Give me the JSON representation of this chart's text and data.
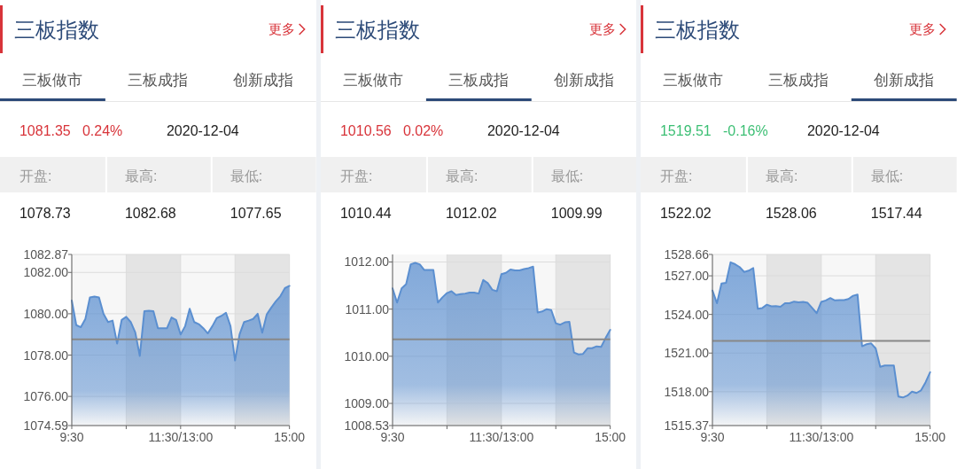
{
  "chart_data": [
    {
      "type": "area",
      "title": "三板指数",
      "annotations": [
        "更多",
        "三板做市",
        "三板成指",
        "创新成指",
        "1081.35",
        "0.24%",
        "2020-12-04",
        "开盘:",
        "最高:",
        "最低:",
        "1078.73",
        "1082.68",
        "1077.65"
      ],
      "categories": [
        "9:30",
        null,
        null,
        null,
        null,
        null,
        null,
        null,
        null,
        null,
        null,
        null,
        null,
        null,
        null,
        null,
        null,
        null,
        null,
        null,
        null,
        null,
        null,
        null,
        "11:30/13:00",
        null,
        null,
        null,
        null,
        null,
        null,
        null,
        null,
        null,
        null,
        null,
        null,
        null,
        null,
        null,
        null,
        null,
        null,
        null,
        null,
        null,
        null,
        null,
        "15:00"
      ],
      "series": [
        {
          "color": "#5b8fd0",
          "values": [
            1080.64,
            1079.45,
            1079.35,
            1079.75,
            1080.79,
            1080.83,
            1080.79,
            1080.0,
            1079.6,
            1079.67,
            1078.56,
            1079.7,
            1079.85,
            1079.6,
            1079.1,
            1077.96,
            1080.12,
            1080.15,
            1080.12,
            1079.3,
            1079.3,
            1079.3,
            1079.82,
            1079.7,
            1079.0,
            1079.4,
            1080.24,
            1079.6,
            1079.5,
            1079.3,
            1079.05,
            1079.4,
            1079.8,
            1079.9,
            1080.05,
            1079.4,
            1077.74,
            1079.0,
            1079.6,
            1079.67,
            1079.75,
            1080.0,
            1079.08,
            1079.97,
            1080.3,
            1080.6,
            1080.85,
            1081.24,
            1081.35
          ]
        }
      ],
      "ylim": [
        1074.59,
        1082.87
      ],
      "yticks": [
        1074.59,
        {
          "value": 1076,
          "label": "1076.00"
        },
        {
          "value": 1078,
          "label": "1078.00"
        },
        {
          "value": 1080,
          "label": "1080.00"
        },
        {
          "value": 1082,
          "label": "1082.00"
        },
        1082.87
      ],
      "ref_lines": [
        {
          "axis": "y",
          "value": 1078.76,
          "color": "#888888"
        }
      ],
      "grid": true
    },
    {
      "type": "area",
      "title": "三板指数",
      "annotations": [
        "更多",
        "三板做市",
        "三板成指",
        "创新成指",
        "1010.56",
        "0.02%",
        "2020-12-04",
        "开盘:",
        "最高:",
        "最低:",
        "1010.44",
        "1012.02",
        "1009.99"
      ],
      "categories": [
        "9:30",
        null,
        null,
        null,
        null,
        null,
        null,
        null,
        null,
        null,
        null,
        null,
        null,
        null,
        null,
        null,
        null,
        null,
        null,
        null,
        null,
        null,
        null,
        null,
        "11:30/13:00",
        null,
        null,
        null,
        null,
        null,
        null,
        null,
        null,
        null,
        null,
        null,
        null,
        null,
        null,
        null,
        null,
        null,
        null,
        null,
        null,
        null,
        null,
        null,
        "15:00"
      ],
      "series": [
        {
          "color": "#5b8fd0",
          "values": [
            1011.44,
            1011.14,
            1011.44,
            1011.53,
            1011.95,
            1011.98,
            1011.95,
            1011.83,
            1011.83,
            1011.83,
            1011.14,
            1011.25,
            1011.34,
            1011.38,
            1011.3,
            1011.32,
            1011.33,
            1011.35,
            1011.35,
            1011.33,
            1011.62,
            1011.55,
            1011.41,
            1011.38,
            1011.74,
            1011.77,
            1011.84,
            1011.82,
            1011.82,
            1011.85,
            1011.87,
            1011.9,
            1010.93,
            1010.95,
            1011.0,
            1010.98,
            1010.7,
            1010.67,
            1010.72,
            1010.73,
            1010.08,
            1010.04,
            1010.05,
            1010.17,
            1010.17,
            1010.21,
            1010.2,
            1010.39,
            1010.56
          ]
        }
      ],
      "ylim": [
        1008.53,
        1012.16
      ],
      "yticks": [
        1008.53,
        {
          "value": 1009,
          "label": "1009.00"
        },
        {
          "value": 1010,
          "label": "1010.00"
        },
        {
          "value": 1011,
          "label": "1011.00"
        },
        {
          "value": 1012,
          "label": "1012.00"
        }
      ],
      "ref_lines": [
        {
          "axis": "y",
          "value": 1010.36,
          "color": "#888888"
        }
      ],
      "grid": true
    },
    {
      "type": "area",
      "title": "三板指数",
      "annotations": [
        "更多",
        "三板做市",
        "三板成指",
        "创新成指",
        "1519.51",
        "-0.16%",
        "2020-12-04",
        "开盘:",
        "最高:",
        "最低:",
        "1522.02",
        "1528.06",
        "1517.44"
      ],
      "categories": [
        "9:30",
        null,
        null,
        null,
        null,
        null,
        null,
        null,
        null,
        null,
        null,
        null,
        null,
        null,
        null,
        null,
        null,
        null,
        null,
        null,
        null,
        null,
        null,
        null,
        "11:30/13:00",
        null,
        null,
        null,
        null,
        null,
        null,
        null,
        null,
        null,
        null,
        null,
        null,
        null,
        null,
        null,
        null,
        null,
        null,
        null,
        null,
        null,
        null,
        null,
        "15:00"
      ],
      "series": [
        {
          "color": "#5b8fd0",
          "values": [
            1525.86,
            1524.87,
            1526.41,
            1526.45,
            1528.05,
            1527.9,
            1527.68,
            1527.3,
            1527.4,
            1527.61,
            1524.44,
            1524.5,
            1524.76,
            1524.63,
            1524.65,
            1524.6,
            1524.87,
            1524.87,
            1525.0,
            1524.94,
            1524.97,
            1524.9,
            1524.5,
            1524.1,
            1524.98,
            1525.09,
            1525.27,
            1525.09,
            1525.12,
            1525.11,
            1525.2,
            1525.45,
            1525.54,
            1521.53,
            1521.69,
            1521.75,
            1521.36,
            1519.93,
            1520.04,
            1520.04,
            1520.04,
            1517.63,
            1517.55,
            1517.7,
            1518.0,
            1517.9,
            1518.1,
            1518.73,
            1519.51
          ]
        }
      ],
      "ylim": [
        1515.37,
        1528.66
      ],
      "yticks": [
        1515.37,
        {
          "value": 1518,
          "label": "1518.00"
        },
        {
          "value": 1521,
          "label": "1521.00"
        },
        {
          "value": 1524,
          "label": "1524.00"
        },
        {
          "value": 1527,
          "label": "1527.00"
        },
        1528.66
      ],
      "ref_lines": [
        {
          "axis": "y",
          "value": 1521.94,
          "color": "#888888"
        }
      ],
      "grid": true
    }
  ]
}
